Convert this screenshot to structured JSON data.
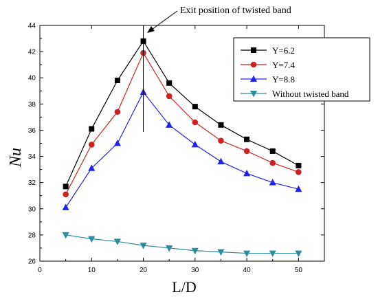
{
  "chart_data": {
    "type": "line",
    "title": "",
    "xlabel": "L/D",
    "ylabel": "Nu",
    "xlim": [
      0,
      55
    ],
    "ylim": [
      26,
      44
    ],
    "x_ticks": [
      0,
      10,
      20,
      30,
      40,
      50
    ],
    "y_ticks": [
      26,
      28,
      30,
      32,
      34,
      36,
      38,
      40,
      42,
      44
    ],
    "x": [
      5,
      10,
      15,
      20,
      25,
      30,
      35,
      40,
      45,
      50
    ],
    "series": [
      {
        "name": "Y=6.2",
        "color": "#000000",
        "marker": "square",
        "values": [
          31.7,
          36.1,
          39.8,
          42.8,
          39.6,
          37.8,
          36.4,
          35.3,
          34.4,
          33.3
        ]
      },
      {
        "name": "Y=7.4",
        "color": "#cc2222",
        "marker": "circle",
        "values": [
          31.1,
          34.9,
          37.4,
          41.9,
          38.6,
          36.6,
          35.2,
          34.4,
          33.5,
          32.8
        ]
      },
      {
        "name": "Y=8.8",
        "color": "#2222ee",
        "marker": "triangle-up",
        "values": [
          30.1,
          33.1,
          35.0,
          38.9,
          36.4,
          34.9,
          33.6,
          32.7,
          32.0,
          31.5
        ]
      },
      {
        "name": "Without twisted band",
        "color": "#2e8b9a",
        "marker": "triangle-down",
        "values": [
          28.0,
          27.7,
          27.5,
          27.2,
          27.0,
          26.8,
          26.7,
          26.6,
          26.6,
          26.6
        ]
      }
    ],
    "annotation": {
      "text": "Exit position of twisted band",
      "x": 20
    },
    "legend_position": "top-right",
    "grid": false
  }
}
